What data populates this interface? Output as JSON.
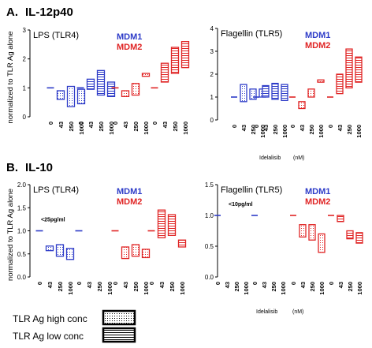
{
  "panels": [
    {
      "letter": "A.",
      "label": "IL-12p40"
    },
    {
      "letter": "B.",
      "label": "IL-10"
    }
  ],
  "legend": {
    "donors": [
      {
        "name": "MDM1",
        "color": "#2e3cc8"
      },
      {
        "name": "MDM2",
        "color": "#e02525"
      }
    ],
    "conditions": [
      {
        "name": "TLR Ag high conc",
        "pattern": "dotted"
      },
      {
        "name": "TLR Ag low conc",
        "pattern": "horizontal-lines"
      }
    ]
  },
  "chart_data": [
    {
      "type": "box",
      "panel": "A",
      "subtitle": "LPS (TLR4)",
      "ylabel": "normalized to TLR Ag alone",
      "ylim": [
        0,
        3
      ],
      "yticks": [
        0,
        1,
        2,
        3
      ],
      "categories": [
        "0",
        "43",
        "250",
        "1000"
      ],
      "series": [
        {
          "name": "MDM1",
          "condition": "high",
          "boxes": [
            [
              1,
              1
            ],
            [
              0.6,
              0.9
            ],
            [
              0.35,
              1.05
            ],
            [
              0.45,
              0.95
            ]
          ]
        },
        {
          "name": "MDM1",
          "condition": "low",
          "boxes": [
            [
              1,
              1
            ],
            [
              0.95,
              1.3
            ],
            [
              0.75,
              1.6
            ],
            [
              0.7,
              1.2
            ]
          ]
        },
        {
          "name": "MDM2",
          "condition": "high",
          "boxes": [
            [
              1,
              1
            ],
            [
              0.7,
              0.9
            ],
            [
              0.75,
              1.15
            ],
            [
              1.4,
              1.5
            ]
          ]
        },
        {
          "name": "MDM2",
          "condition": "low",
          "boxes": [
            [
              1,
              1
            ],
            [
              1.2,
              1.85
            ],
            [
              1.5,
              2.4
            ],
            [
              1.7,
              2.6
            ]
          ]
        }
      ]
    },
    {
      "type": "box",
      "panel": "A",
      "subtitle": "Flagellin (TLR5)",
      "ylabel": "",
      "ylim": [
        0,
        4
      ],
      "yticks": [
        0,
        1,
        2,
        3,
        4
      ],
      "categories": [
        "0",
        "43",
        "250",
        "1000"
      ],
      "xlabel": "Idelalisib",
      "xunit": "(nM)",
      "series": [
        {
          "name": "MDM1",
          "condition": "high",
          "boxes": [
            [
              1,
              1
            ],
            [
              0.8,
              1.55
            ],
            [
              0.9,
              1.35
            ],
            [
              1.0,
              1.35
            ]
          ]
        },
        {
          "name": "MDM1",
          "condition": "low",
          "boxes": [
            [
              1,
              1
            ],
            [
              1.0,
              1.5
            ],
            [
              0.9,
              1.6
            ],
            [
              0.85,
              1.55
            ]
          ]
        },
        {
          "name": "MDM2",
          "condition": "high",
          "boxes": [
            [
              1,
              1
            ],
            [
              0.5,
              0.8
            ],
            [
              1.0,
              1.35
            ],
            [
              1.65,
              1.75
            ]
          ]
        },
        {
          "name": "MDM2",
          "condition": "low",
          "boxes": [
            [
              1,
              1
            ],
            [
              1.15,
              2.0
            ],
            [
              1.4,
              3.1
            ],
            [
              1.65,
              2.75
            ]
          ]
        }
      ]
    },
    {
      "type": "box",
      "panel": "B",
      "subtitle": "LPS (TLR4)",
      "ylabel": "normalized to TLR Ag alone",
      "ylim": [
        0,
        2
      ],
      "yticks": [
        0,
        0.5,
        1.0,
        1.5,
        2.0
      ],
      "categories": [
        "0",
        "43",
        "250",
        "1000"
      ],
      "annotation": "<25pg/ml",
      "series": [
        {
          "name": "MDM1",
          "condition": "high",
          "boxes": [
            [
              1,
              1
            ],
            [
              0.57,
              0.67
            ],
            [
              0.45,
              0.7
            ],
            [
              0.38,
              0.62
            ]
          ]
        },
        {
          "name": "MDM1",
          "condition": "low",
          "boxes": [
            [
              1,
              1
            ],
            [
              null,
              null
            ],
            [
              null,
              null
            ],
            [
              null,
              null
            ]
          ]
        },
        {
          "name": "MDM2",
          "condition": "high",
          "boxes": [
            [
              1,
              1
            ],
            [
              0.4,
              0.65
            ],
            [
              0.45,
              0.7
            ],
            [
              0.42,
              0.6
            ]
          ]
        },
        {
          "name": "MDM2",
          "condition": "low",
          "boxes": [
            [
              1,
              1
            ],
            [
              0.85,
              1.45
            ],
            [
              0.9,
              1.35
            ],
            [
              0.65,
              0.8
            ]
          ]
        }
      ]
    },
    {
      "type": "box",
      "panel": "B",
      "subtitle": "Flagellin (TLR5)",
      "ylabel": "",
      "ylim": [
        0,
        1.5
      ],
      "yticks": [
        0,
        0.5,
        1.0,
        1.5
      ],
      "categories": [
        "0",
        "43",
        "250",
        "1000"
      ],
      "xlabel": "Idelalisib",
      "xunit": "(nM)",
      "annotation": "<10pg/ml",
      "series": [
        {
          "name": "MDM1",
          "condition": "high",
          "boxes": [
            [
              1,
              1
            ],
            [
              null,
              null
            ],
            [
              null,
              null
            ],
            [
              null,
              null
            ]
          ]
        },
        {
          "name": "MDM1",
          "condition": "low",
          "boxes": [
            [
              1,
              1
            ],
            [
              null,
              null
            ],
            [
              null,
              null
            ],
            [
              null,
              null
            ]
          ]
        },
        {
          "name": "MDM2",
          "condition": "high",
          "boxes": [
            [
              1,
              1
            ],
            [
              0.65,
              0.85
            ],
            [
              0.6,
              0.85
            ],
            [
              0.4,
              0.7
            ]
          ]
        },
        {
          "name": "MDM2",
          "condition": "low",
          "boxes": [
            [
              1,
              1
            ],
            [
              0.9,
              1.0
            ],
            [
              0.62,
              0.75
            ],
            [
              0.55,
              0.72
            ]
          ]
        }
      ]
    }
  ]
}
